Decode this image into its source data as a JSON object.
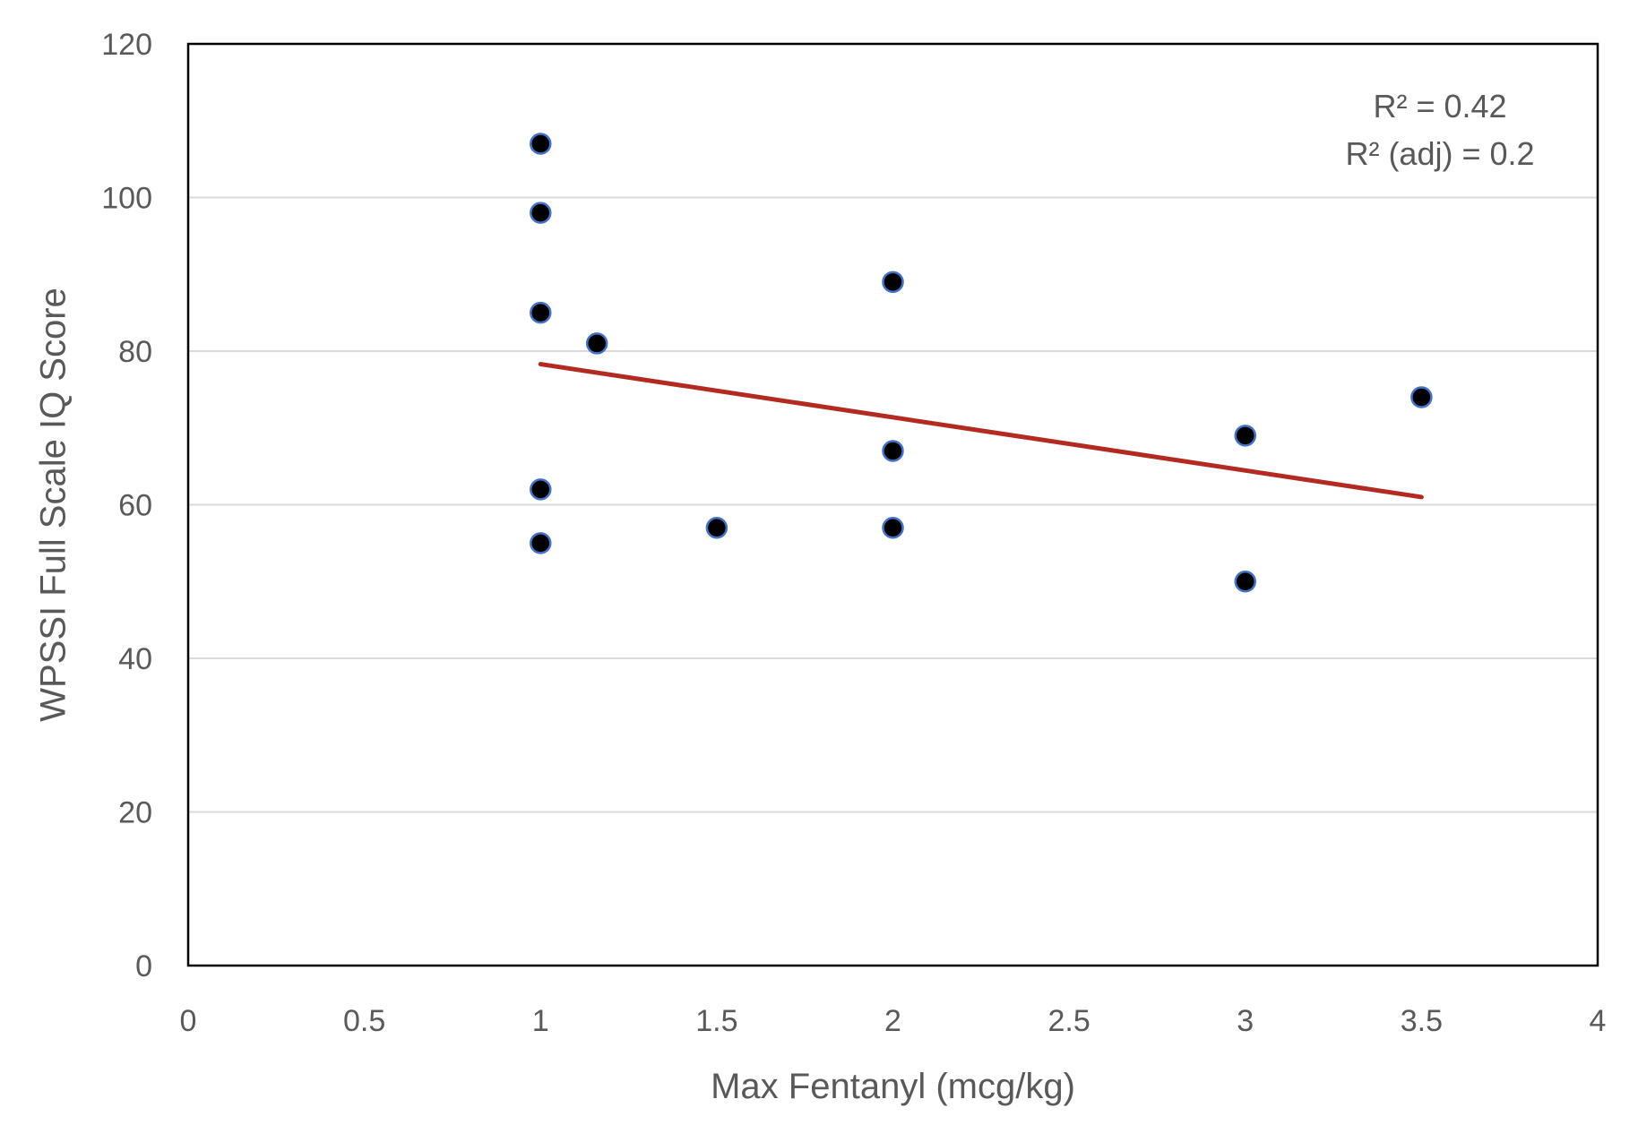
{
  "chart_data": {
    "type": "scatter",
    "title": "",
    "xlabel": "Max Fentanyl (mcg/kg)",
    "ylabel": "WPSSI Full Scale IQ Score",
    "xlim": [
      0,
      4
    ],
    "ylim": [
      0,
      120
    ],
    "x_ticks": [
      0,
      0.5,
      1,
      1.5,
      2,
      2.5,
      3,
      3.5,
      4
    ],
    "x_tick_labels": [
      "0",
      "0.5",
      "1",
      "1.5",
      "2",
      "2.5",
      "3",
      "3.5",
      "4"
    ],
    "y_ticks": [
      0,
      20,
      40,
      60,
      80,
      100,
      120
    ],
    "y_tick_labels": [
      "0",
      "20",
      "40",
      "60",
      "80",
      "100",
      "120"
    ],
    "grid": "horizontal",
    "legend": "none",
    "points": [
      {
        "x": 1,
        "y": 107
      },
      {
        "x": 1,
        "y": 98
      },
      {
        "x": 1,
        "y": 85
      },
      {
        "x": 1,
        "y": 62
      },
      {
        "x": 1,
        "y": 55
      },
      {
        "x": 1.16,
        "y": 81
      },
      {
        "x": 1.5,
        "y": 57
      },
      {
        "x": 2,
        "y": 89
      },
      {
        "x": 2,
        "y": 67
      },
      {
        "x": 2,
        "y": 57
      },
      {
        "x": 3,
        "y": 69
      },
      {
        "x": 3,
        "y": 50
      },
      {
        "x": 3.5,
        "y": 74
      }
    ],
    "trendline": {
      "x": [
        1,
        3.5
      ],
      "y": [
        78.3,
        61
      ]
    },
    "annotations": [
      "R² = 0.42",
      "R² (adj) = 0.2"
    ],
    "colors": {
      "marker_fill": "#000000",
      "marker_stroke": "#4472C4",
      "trendline": "#B22A20",
      "grid": "#D9D9D9",
      "frame": "#000000",
      "text": "#595959"
    }
  }
}
